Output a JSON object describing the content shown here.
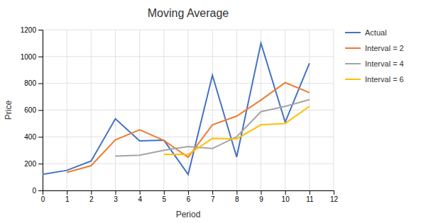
{
  "chart_data": {
    "type": "line",
    "title": "Moving Average",
    "xlabel": "Period",
    "ylabel": "Price",
    "x": [
      0,
      1,
      2,
      3,
      4,
      5,
      6,
      7,
      8,
      9,
      10,
      11
    ],
    "series": [
      {
        "name": "Actual",
        "color": "#4472C4",
        "values": [
          120,
          150,
          220,
          535,
          370,
          375,
          120,
          860,
          250,
          1100,
          510,
          950
        ]
      },
      {
        "name": "Interval = 2",
        "color": "#ED7D31",
        "values": [
          null,
          135,
          185,
          378,
          453,
          373,
          248,
          490,
          555,
          675,
          805,
          730
        ]
      },
      {
        "name": "Interval = 4",
        "color": "#A5A5A5",
        "values": [
          null,
          null,
          null,
          257,
          263,
          300,
          328,
          313,
          401,
          588,
          628,
          678
        ]
      },
      {
        "name": "Interval = 6",
        "color": "#FFC000",
        "values": [
          null,
          null,
          null,
          null,
          null,
          270,
          268,
          388,
          385,
          490,
          500,
          628
        ]
      }
    ],
    "xlim": [
      0,
      12
    ],
    "ylim": [
      0,
      1200
    ],
    "xticks": [
      0,
      1,
      2,
      3,
      4,
      5,
      6,
      7,
      8,
      9,
      10,
      11,
      12
    ],
    "yticks": [
      0,
      200,
      400,
      600,
      800,
      1000,
      1200
    ],
    "grid": true,
    "legend": "right"
  }
}
